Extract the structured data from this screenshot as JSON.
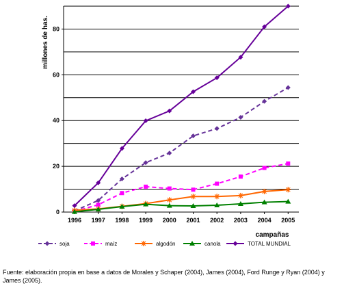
{
  "chart_data": {
    "type": "line",
    "xlabel": "campañas",
    "ylabel": "millones de has.",
    "ylim": [
      0,
      90
    ],
    "yticks": [
      0,
      20,
      40,
      60,
      80
    ],
    "x": [
      "1996",
      "1997",
      "1998",
      "1999",
      "2000",
      "2001",
      "2002",
      "2003",
      "2004",
      "2005"
    ],
    "grid": true,
    "legend_position": "bottom",
    "series": [
      {
        "name": "soja",
        "color": "#663399",
        "style": "dashed",
        "marker": "diamond",
        "values": [
          0.5,
          5.1,
          14.5,
          21.6,
          25.8,
          33.3,
          36.5,
          41.4,
          48.4,
          54.4
        ]
      },
      {
        "name": "maíz",
        "color": "#ff00ff",
        "style": "dashed",
        "marker": "square",
        "values": [
          0.3,
          3.2,
          8.3,
          11.1,
          10.3,
          9.8,
          12.4,
          15.5,
          19.3,
          21.2
        ]
      },
      {
        "name": "algodón",
        "color": "#ff6600",
        "style": "solid",
        "marker": "star",
        "values": [
          0.8,
          1.4,
          2.5,
          3.7,
          5.3,
          6.8,
          6.8,
          7.2,
          9.0,
          9.8
        ]
      },
      {
        "name": "canola",
        "color": "#008000",
        "style": "solid",
        "marker": "triangle",
        "values": [
          0.1,
          1.2,
          2.4,
          3.4,
          2.8,
          2.7,
          3.0,
          3.6,
          4.3,
          4.6
        ]
      },
      {
        "name": "TOTAL MUNDIAL",
        "color": "#660099",
        "style": "solid",
        "marker": "diamond",
        "values": [
          2.8,
          12.8,
          27.8,
          39.9,
          44.2,
          52.6,
          58.7,
          67.7,
          81.0,
          90.0
        ]
      }
    ]
  },
  "source_note": "Fuente: elaboración propia en base a datos de Morales y Schaper (2004), James (2004), Ford Runge y Ryan (2004) y James (2005)."
}
